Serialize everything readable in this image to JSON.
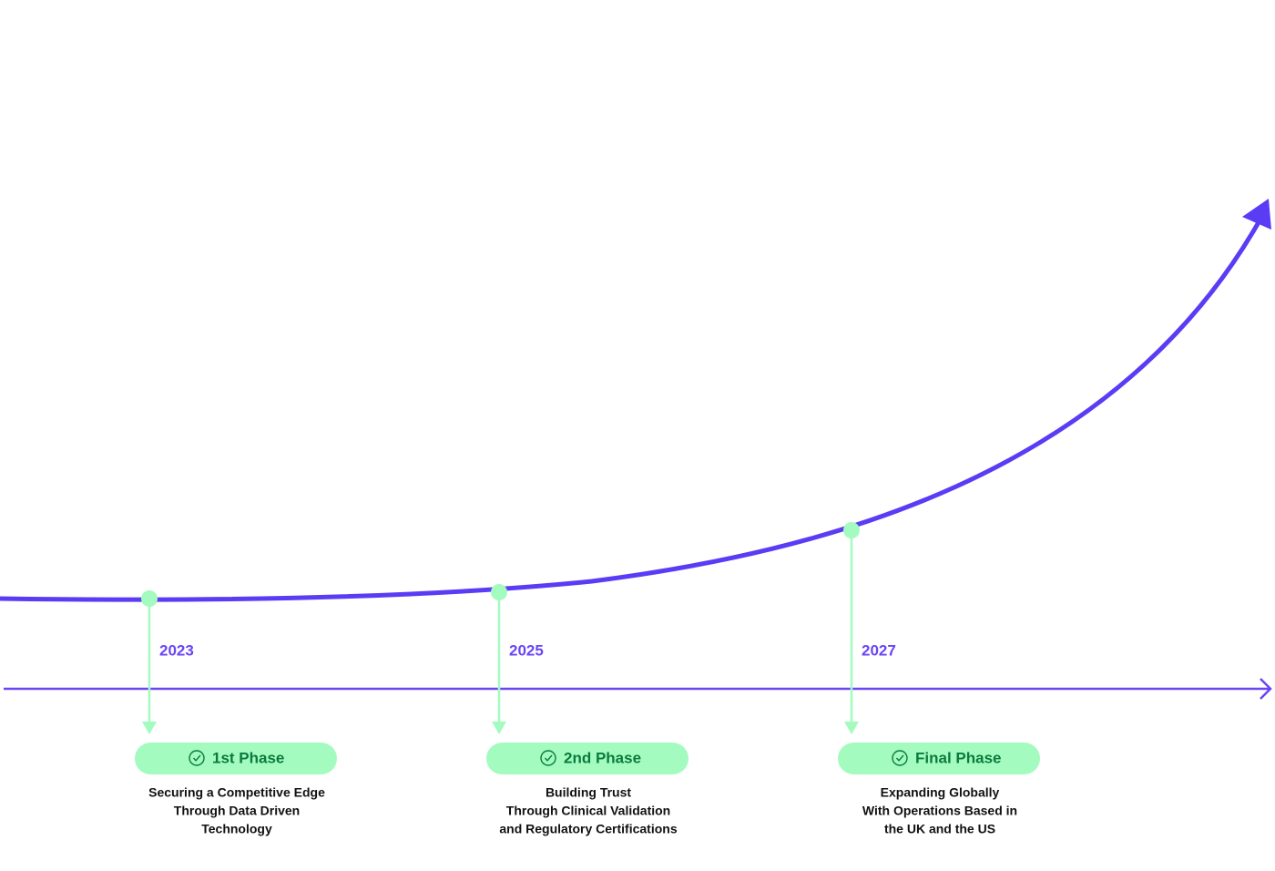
{
  "phases": [
    {
      "year": "2023",
      "title": "1st Phase",
      "description": [
        "Securing a Competitive Edge",
        "Through Data Driven",
        "Technology"
      ]
    },
    {
      "year": "2025",
      "title": "2nd Phase",
      "description": [
        "Building Trust",
        "Through Clinical Validation",
        "and Regulatory Certifications"
      ]
    },
    {
      "year": "2027",
      "title": "Final Phase",
      "description": [
        "Expanding Globally",
        "With Operations Based in",
        "the UK and the US"
      ]
    }
  ]
}
